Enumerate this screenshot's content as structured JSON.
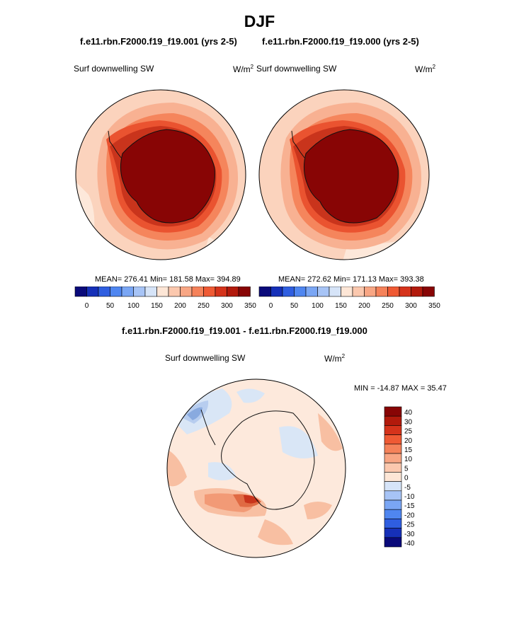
{
  "page": {
    "title": "DJF",
    "left_case_title": "f.e11.rbn.F2000.f19_f19.001 (yrs 2-5)",
    "right_case_title": "f.e11.rbn.F2000.f19_f19.000 (yrs 2-5)",
    "diff_title": "f.e11.rbn.F2000.f19_f19.001 - f.e11.rbn.F2000.f19_f19.000"
  },
  "left_panel": {
    "variable": "Surf downwelling SW",
    "units_base": "W/m",
    "units_exp": "2",
    "stats": "MEAN= 276.41  Min= 181.58  Max= 394.89"
  },
  "right_panel": {
    "variable": "Surf downwelling SW",
    "units_base": "W/m",
    "units_exp": "2",
    "stats": "MEAN= 272.62  Min= 171.13  Max= 393.38"
  },
  "diff_panel": {
    "variable": "Surf downwelling SW",
    "units_base": "W/m",
    "units_exp": "2",
    "stats": "MIN = -14.87 MAX =  35.47"
  },
  "abs_colorbar": {
    "colors": [
      "#0a0a7a",
      "#1630b8",
      "#2f5ee0",
      "#4f86f0",
      "#7aa6f4",
      "#a7c4f6",
      "#d6e4f8",
      "#fde6d6",
      "#fbc8ae",
      "#f8a684",
      "#f5825a",
      "#ef5a34",
      "#d5331b",
      "#b21a0c",
      "#880505"
    ],
    "tick_labels": [
      "0",
      "50",
      "100",
      "150",
      "200",
      "250",
      "300",
      "350"
    ]
  },
  "diff_colorbar": {
    "colors": [
      "#880505",
      "#b21a0c",
      "#d5331b",
      "#ef5a34",
      "#f5825a",
      "#f8a684",
      "#fbc8ae",
      "#fde6d6",
      "#d6e4f8",
      "#a7c4f6",
      "#7aa6f4",
      "#4f86f0",
      "#2f5ee0",
      "#1630b8",
      "#0a0a7a"
    ],
    "tick_labels": [
      "40",
      "30",
      "25",
      "20",
      "15",
      "10",
      "5",
      "0",
      "-5",
      "-10",
      "-15",
      "-20",
      "-25",
      "-30",
      "-40"
    ]
  },
  "map_colors": {
    "bg": "#fbd3bd",
    "ring1": "#f8b192",
    "ring2": "#f5855c",
    "ring3": "#ea5330",
    "ring4": "#c9341c",
    "core": "#880505",
    "pale": "#fde8da",
    "diff_bg": "#fde9dc",
    "diff_blue": "#d9e6f6",
    "diff_blue2": "#b7cdef",
    "diff_blue3": "#89aadf",
    "diff_red1": "#f8bfa2",
    "diff_red2": "#f29a76",
    "diff_red3": "#e06a43",
    "diff_red4": "#c9341c",
    "coast": "#111111"
  }
}
